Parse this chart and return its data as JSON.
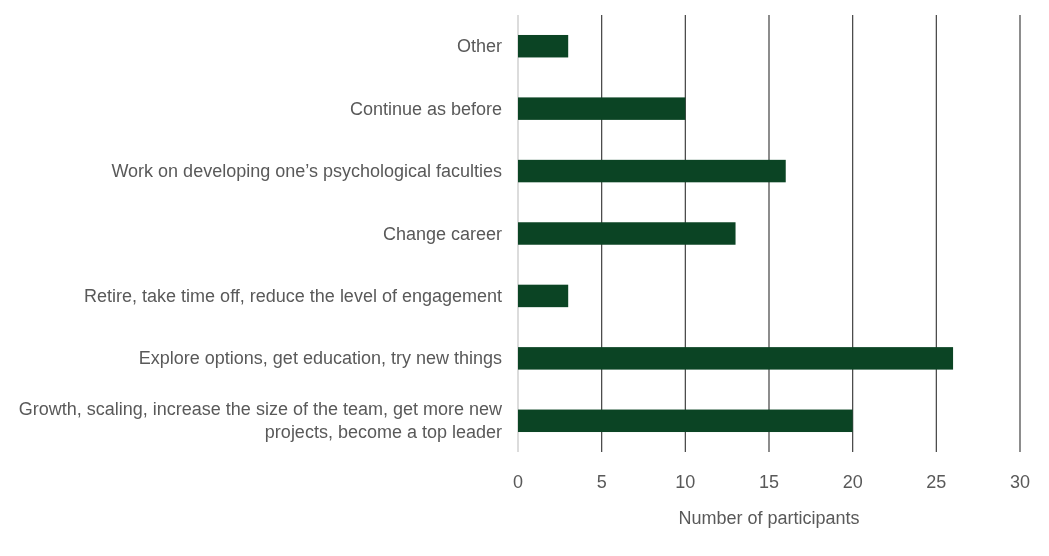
{
  "chart_data": {
    "type": "bar",
    "orientation": "horizontal",
    "categories": [
      "Other",
      "Continue as before",
      "Work on developing one’s psychological faculties",
      "Change career",
      "Retire, take time off, reduce the level of engagement",
      "Explore options, get education, try new things",
      "Growth, scaling, increase the size of the team, get more new projects, become a top leader"
    ],
    "values": [
      3,
      10,
      16,
      13,
      3,
      26,
      20
    ],
    "color": "#0b4424",
    "xlim": [
      0,
      30
    ],
    "xticks": [
      0,
      5,
      10,
      15,
      20,
      25,
      30
    ],
    "xlabel": "Number of participants",
    "grid": "x"
  }
}
